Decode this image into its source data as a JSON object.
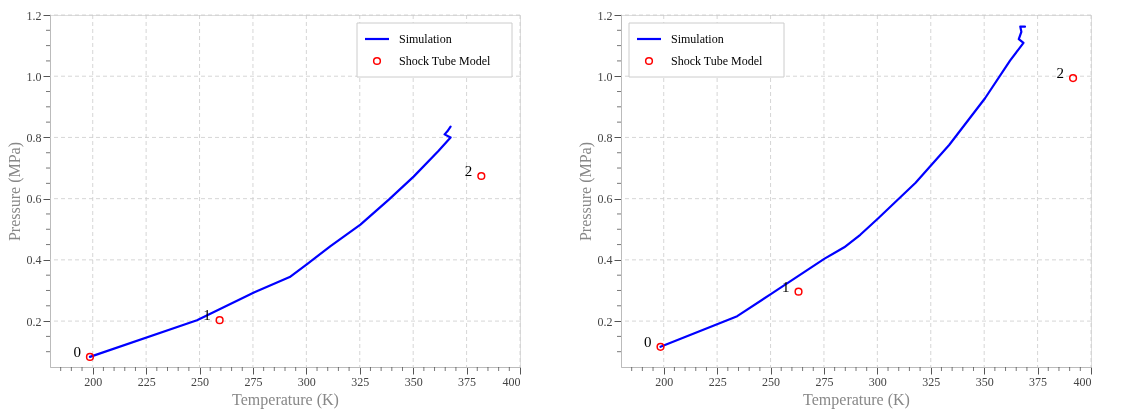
{
  "chart_data": [
    {
      "type": "line",
      "xlabel": "Temperature (K)",
      "ylabel": "Pressure (MPa)",
      "xlim": [
        180,
        400
      ],
      "ylim": [
        0.05,
        1.2
      ],
      "xticks": [
        {
          "value": 185,
          "label": null
        },
        {
          "value": 190,
          "label": null
        },
        {
          "value": 195,
          "label": null
        },
        200,
        {
          "value": 205,
          "label": null
        },
        {
          "value": 210,
          "label": null
        },
        {
          "value": 215,
          "label": null
        },
        {
          "value": 220,
          "label": null
        },
        225,
        {
          "value": 230,
          "label": null
        },
        {
          "value": 235,
          "label": null
        },
        {
          "value": 240,
          "label": null
        },
        {
          "value": 245,
          "label": null
        },
        250,
        {
          "value": 255,
          "label": null
        },
        {
          "value": 260,
          "label": null
        },
        {
          "value": 265,
          "label": null
        },
        {
          "value": 270,
          "label": null
        },
        275,
        {
          "value": 280,
          "label": null
        },
        {
          "value": 285,
          "label": null
        },
        {
          "value": 290,
          "label": null
        },
        {
          "value": 295,
          "label": null
        },
        300,
        {
          "value": 305,
          "label": null
        },
        {
          "value": 310,
          "label": null
        },
        {
          "value": 315,
          "label": null
        },
        {
          "value": 320,
          "label": null
        },
        325,
        {
          "value": 330,
          "label": null
        },
        {
          "value": 335,
          "label": null
        },
        {
          "value": 340,
          "label": null
        },
        {
          "value": 345,
          "label": null
        },
        350,
        {
          "value": 355,
          "label": null
        },
        {
          "value": 360,
          "label": null
        },
        {
          "value": 365,
          "label": null
        },
        {
          "value": 370,
          "label": null
        },
        375,
        {
          "value": 380,
          "label": null
        },
        {
          "value": 385,
          "label": null
        },
        {
          "value": 390,
          "label": null
        },
        {
          "value": 395,
          "label": null
        },
        400
      ],
      "yticks": [
        {
          "value": 0.1,
          "label": null
        },
        {
          "value": 0.15,
          "label": null
        },
        0.2,
        {
          "value": 0.25,
          "label": null
        },
        {
          "value": 0.3,
          "label": null
        },
        {
          "value": 0.35,
          "label": null
        },
        0.4,
        {
          "value": 0.45,
          "label": null
        },
        {
          "value": 0.5,
          "label": null
        },
        {
          "value": 0.55,
          "label": null
        },
        0.6,
        {
          "value": 0.65,
          "label": null
        },
        {
          "value": 0.7,
          "label": null
        },
        {
          "value": 0.75,
          "label": null
        },
        0.8,
        {
          "value": 0.85,
          "label": null
        },
        {
          "value": 0.9,
          "label": null
        },
        {
          "value": 0.95,
          "label": null
        },
        {
          "value": 1,
          "label": "1.0"
        },
        {
          "value": 1.05,
          "label": null
        },
        {
          "value": 1.1,
          "label": null
        },
        {
          "value": 1.15,
          "label": null
        },
        1.2
      ],
      "grid": true,
      "legend": "top right",
      "series": [
        {
          "name": "Simulation",
          "color": "#0000ff",
          "x": [
            198.7,
            248.8,
            275.7,
            292.2,
            300.5,
            311.3,
            325.3,
            338.6,
            350.2,
            361.8,
            367.5,
            364.7,
            366.0,
            367.5
          ],
          "values": [
            0.083,
            0.203,
            0.294,
            0.344,
            0.387,
            0.445,
            0.515,
            0.597,
            0.672,
            0.756,
            0.8,
            0.81,
            0.82,
            0.835
          ]
        },
        {
          "name": "Shock Tube Model",
          "type": "scatter",
          "marker": "circle",
          "color": "#ff0000",
          "x": [
            198.7,
            259.4,
            381.9
          ],
          "values": [
            0.083,
            0.203,
            0.674
          ]
        }
      ],
      "annotations": [
        {
          "text": "0",
          "x": 198.7,
          "y": 0.083
        },
        {
          "text": "1",
          "x": 259.4,
          "y": 0.203
        },
        {
          "text": "2",
          "x": 381.9,
          "y": 0.674
        }
      ]
    },
    {
      "type": "line",
      "xlabel": "Temperature (K)",
      "ylabel": "Pressure (MPa)",
      "xlim": [
        180,
        400
      ],
      "ylim": [
        0.05,
        1.2
      ],
      "xticks": [
        {
          "value": 185,
          "label": null
        },
        {
          "value": 190,
          "label": null
        },
        {
          "value": 195,
          "label": null
        },
        200,
        {
          "value": 205,
          "label": null
        },
        {
          "value": 210,
          "label": null
        },
        {
          "value": 215,
          "label": null
        },
        {
          "value": 220,
          "label": null
        },
        225,
        {
          "value": 230,
          "label": null
        },
        {
          "value": 235,
          "label": null
        },
        {
          "value": 240,
          "label": null
        },
        {
          "value": 245,
          "label": null
        },
        250,
        {
          "value": 255,
          "label": null
        },
        {
          "value": 260,
          "label": null
        },
        {
          "value": 265,
          "label": null
        },
        {
          "value": 270,
          "label": null
        },
        275,
        {
          "value": 280,
          "label": null
        },
        {
          "value": 285,
          "label": null
        },
        {
          "value": 290,
          "label": null
        },
        {
          "value": 295,
          "label": null
        },
        300,
        {
          "value": 305,
          "label": null
        },
        {
          "value": 310,
          "label": null
        },
        {
          "value": 315,
          "label": null
        },
        {
          "value": 320,
          "label": null
        },
        325,
        {
          "value": 330,
          "label": null
        },
        {
          "value": 335,
          "label": null
        },
        {
          "value": 340,
          "label": null
        },
        {
          "value": 345,
          "label": null
        },
        350,
        {
          "value": 355,
          "label": null
        },
        {
          "value": 360,
          "label": null
        },
        {
          "value": 365,
          "label": null
        },
        {
          "value": 370,
          "label": null
        },
        375,
        {
          "value": 380,
          "label": null
        },
        {
          "value": 385,
          "label": null
        },
        {
          "value": 390,
          "label": null
        },
        {
          "value": 395,
          "label": null
        },
        400
      ],
      "yticks": [
        {
          "value": 0.1,
          "label": null
        },
        {
          "value": 0.15,
          "label": null
        },
        0.2,
        {
          "value": 0.25,
          "label": null
        },
        {
          "value": 0.3,
          "label": null
        },
        {
          "value": 0.35,
          "label": null
        },
        0.4,
        {
          "value": 0.45,
          "label": null
        },
        {
          "value": 0.5,
          "label": null
        },
        {
          "value": 0.55,
          "label": null
        },
        0.6,
        {
          "value": 0.65,
          "label": null
        },
        {
          "value": 0.7,
          "label": null
        },
        {
          "value": 0.75,
          "label": null
        },
        0.8,
        {
          "value": 0.85,
          "label": null
        },
        {
          "value": 0.9,
          "label": null
        },
        {
          "value": 0.95,
          "label": null
        },
        {
          "value": 1,
          "label": "1.0"
        },
        {
          "value": 1.05,
          "label": null
        },
        {
          "value": 1.1,
          "label": null
        },
        {
          "value": 1.15,
          "label": null
        },
        1.2
      ],
      "grid": true,
      "legend": "top left",
      "series": [
        {
          "name": "Simulation",
          "color": "#0000ff",
          "x": [
            198.5,
            234.4,
            250.3,
            275.3,
            284.5,
            292.0,
            300.3,
            317.9,
            333.7,
            350.4,
            362.1,
            368.4,
            366.2,
            367.4,
            366.9,
            369.1
          ],
          "values": [
            0.116,
            0.216,
            0.289,
            0.404,
            0.441,
            0.482,
            0.535,
            0.652,
            0.776,
            0.928,
            1.051,
            1.109,
            1.121,
            1.145,
            1.162,
            1.162
          ]
        },
        {
          "name": "Shock Tube Model",
          "type": "scatter",
          "marker": "circle",
          "color": "#ff0000",
          "x": [
            198.5,
            263.1,
            391.6
          ],
          "values": [
            0.116,
            0.296,
            0.994
          ]
        }
      ],
      "annotations": [
        {
          "text": "0",
          "x": 198.5,
          "y": 0.116
        },
        {
          "text": "1",
          "x": 263.1,
          "y": 0.296
        },
        {
          "text": "2",
          "x": 391.6,
          "y": 0.994
        }
      ]
    }
  ]
}
